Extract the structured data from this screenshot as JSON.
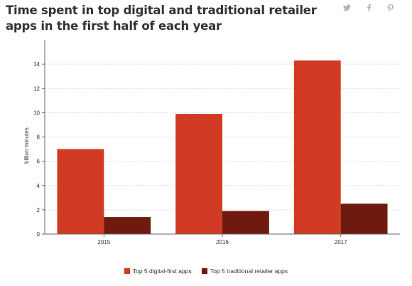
{
  "title": "Time spent in top digital and traditional retailer apps in the first half of each year",
  "share": {
    "twitter_icon": "twitter-icon",
    "facebook_icon": "facebook-icon",
    "pinterest_icon": "pinterest-icon"
  },
  "colors": {
    "series1": "#d13b23",
    "series2": "#6e1a0f",
    "grid": "#d9d9d9",
    "axis": "#666666"
  },
  "chart_data": {
    "type": "bar",
    "title": "Time spent in top digital and traditional retailer apps in the first half of each year",
    "xlabel": "",
    "ylabel": "billion minutes",
    "categories": [
      "2015",
      "2016",
      "2017"
    ],
    "ylim": [
      0,
      16
    ],
    "yticks": [
      0,
      2,
      4,
      6,
      8,
      10,
      12,
      14
    ],
    "grid": true,
    "legend": "bottom",
    "series": [
      {
        "name": "Top 5 digital-first apps",
        "values": [
          7.0,
          9.9,
          14.3
        ]
      },
      {
        "name": "Top 5 traditional retailer apps",
        "values": [
          1.4,
          1.9,
          2.5
        ]
      }
    ]
  }
}
